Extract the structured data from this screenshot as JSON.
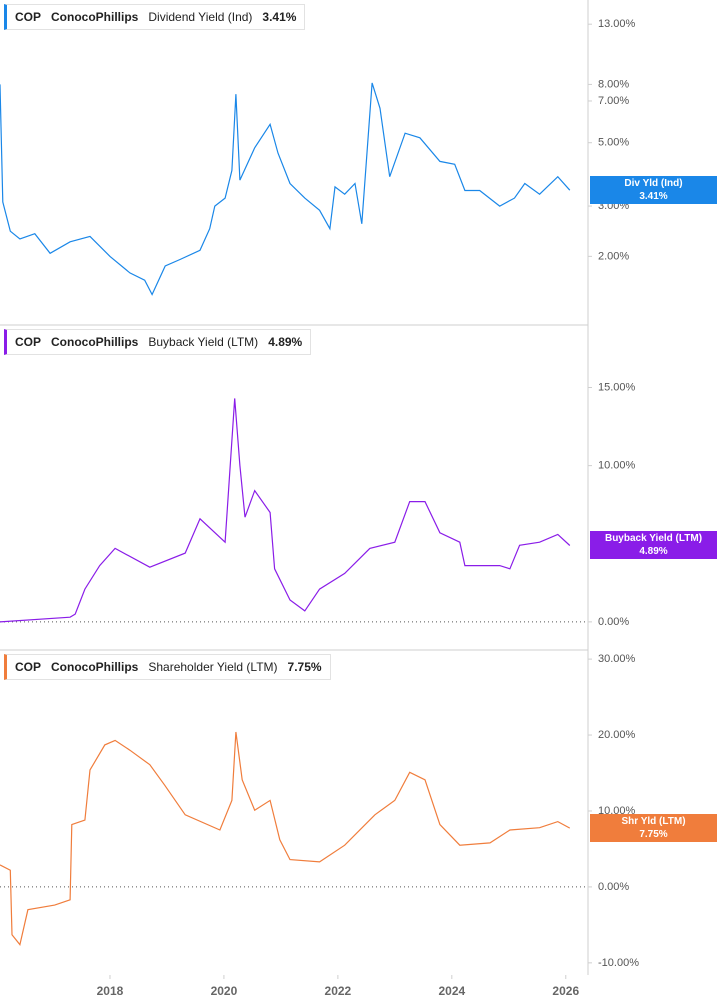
{
  "chart_data": [
    {
      "type": "line",
      "ticker": "COP",
      "company": "ConocoPhillips",
      "title": "Dividend Yield (Ind)",
      "current": "3.41%",
      "box_label": "Div Yld (Ind)",
      "log": true,
      "zero_line": false,
      "x": [
        2016.07,
        2016.12,
        2016.25,
        2016.42,
        2016.68,
        2016.95,
        2017.3,
        2017.65,
        2018.0,
        2018.35,
        2018.61,
        2018.74,
        2018.97,
        2019.23,
        2019.58,
        2019.75,
        2019.84,
        2020.02,
        2020.14,
        2020.21,
        2020.28,
        2020.54,
        2020.81,
        2020.95,
        2021.16,
        2021.42,
        2021.68,
        2021.86,
        2021.95,
        2022.12,
        2022.3,
        2022.42,
        2022.6,
        2022.74,
        2022.91,
        2023.18,
        2023.44,
        2023.79,
        2024.05,
        2024.23,
        2024.49,
        2024.84,
        2025.1,
        2025.28,
        2025.54,
        2025.86,
        2026.07
      ],
      "series": [
        {
          "name": "Dividend Yield (Ind)",
          "color": "#1a87e8",
          "values": [
            8.0,
            3.1,
            2.45,
            2.3,
            2.4,
            2.05,
            2.25,
            2.35,
            2.0,
            1.75,
            1.65,
            1.47,
            1.85,
            1.95,
            2.1,
            2.5,
            3.0,
            3.2,
            4.0,
            7.4,
            3.7,
            4.8,
            5.8,
            4.6,
            3.6,
            3.2,
            2.9,
            2.5,
            3.5,
            3.3,
            3.6,
            2.6,
            8.1,
            6.6,
            3.8,
            5.4,
            5.2,
            4.3,
            4.2,
            3.4,
            3.4,
            3.0,
            3.2,
            3.6,
            3.3,
            3.8,
            3.41
          ]
        }
      ],
      "xlim": [
        2016.07,
        2026.39
      ],
      "ylim": [
        1.15,
        15.8
      ],
      "yticks": [
        {
          "value": 2,
          "label": "2.00%"
        },
        {
          "value": 3,
          "label": "3.00%"
        },
        {
          "value": 5,
          "label": "5.00%"
        },
        {
          "value": 7,
          "label": "7.00%"
        },
        {
          "value": 8,
          "label": "8.00%"
        },
        {
          "value": 13,
          "label": "13.00%"
        }
      ]
    },
    {
      "type": "line",
      "ticker": "COP",
      "company": "ConocoPhillips",
      "title": "Buyback Yield (LTM)",
      "current": "4.89%",
      "box_label": "Buyback Yield (LTM)",
      "log": false,
      "zero_line": true,
      "x": [
        2016.07,
        2017.3,
        2017.39,
        2017.56,
        2017.82,
        2018.09,
        2018.7,
        2019.32,
        2019.58,
        2020.02,
        2020.19,
        2020.28,
        2020.37,
        2020.54,
        2020.81,
        2020.89,
        2021.16,
        2021.42,
        2021.68,
        2022.12,
        2022.56,
        2023.0,
        2023.26,
        2023.53,
        2023.79,
        2024.14,
        2024.23,
        2024.84,
        2025.02,
        2025.19,
        2025.54,
        2025.86,
        2026.07
      ],
      "series": [
        {
          "name": "Buyback Yield (LTM)",
          "color": "#8a1de8",
          "values": [
            0,
            0.3,
            0.5,
            2.1,
            3.6,
            4.7,
            3.5,
            4.4,
            6.6,
            5.1,
            14.3,
            10,
            6.7,
            8.4,
            7.0,
            3.4,
            1.4,
            0.7,
            2.1,
            3.1,
            4.7,
            5.1,
            7.7,
            7.7,
            5.7,
            5.1,
            3.6,
            3.6,
            3.4,
            4.9,
            5.1,
            5.6,
            4.89
          ]
        }
      ],
      "xlim": [
        2016.07,
        2026.39
      ],
      "ylim": [
        -1.8,
        19
      ],
      "yticks": [
        {
          "value": 0,
          "label": "0.00%"
        },
        {
          "value": 10,
          "label": "10.00%"
        },
        {
          "value": 15,
          "label": "15.00%"
        }
      ]
    },
    {
      "type": "line",
      "ticker": "COP",
      "company": "ConocoPhillips",
      "title": "Shareholder Yield (LTM)",
      "current": "7.75%",
      "box_label": "Shr Yld (LTM)",
      "log": false,
      "zero_line": true,
      "x": [
        2016.07,
        2016.25,
        2016.28,
        2016.42,
        2016.56,
        2017.03,
        2017.3,
        2017.33,
        2017.56,
        2017.65,
        2017.91,
        2018.09,
        2018.35,
        2018.7,
        2018.96,
        2019.32,
        2019.93,
        2020.14,
        2020.21,
        2020.32,
        2020.54,
        2020.81,
        2020.98,
        2021.16,
        2021.68,
        2022.12,
        2022.65,
        2023.0,
        2023.26,
        2023.53,
        2023.79,
        2024.14,
        2024.67,
        2025.02,
        2025.54,
        2025.86,
        2026.07
      ],
      "series": [
        {
          "name": "Shareholder Yield (LTM)",
          "color": "#f07d3c",
          "values": [
            2.9,
            2.2,
            -6.3,
            -7.6,
            -3.0,
            -2.4,
            -1.7,
            8.2,
            8.8,
            15.4,
            18.7,
            19.3,
            18.0,
            16.1,
            13.4,
            9.5,
            7.5,
            11.4,
            20.4,
            14.1,
            10.1,
            11.4,
            6.2,
            3.6,
            3.3,
            5.5,
            9.5,
            11.4,
            15.1,
            14.1,
            8.2,
            5.5,
            5.8,
            7.5,
            7.8,
            8.6,
            7.75
          ]
        }
      ],
      "xlim": [
        2016.07,
        2026.39
      ],
      "ylim": [
        -11.6,
        31.2
      ],
      "yticks": [
        {
          "value": -10,
          "label": "-10.00%"
        },
        {
          "value": 0,
          "label": "0.00%"
        },
        {
          "value": 10,
          "label": "10.00%"
        },
        {
          "value": 20,
          "label": "20.00%"
        },
        {
          "value": 30,
          "label": "30.00%"
        }
      ],
      "xticks": [
        2018,
        2020,
        2022,
        2024,
        2026
      ]
    }
  ]
}
